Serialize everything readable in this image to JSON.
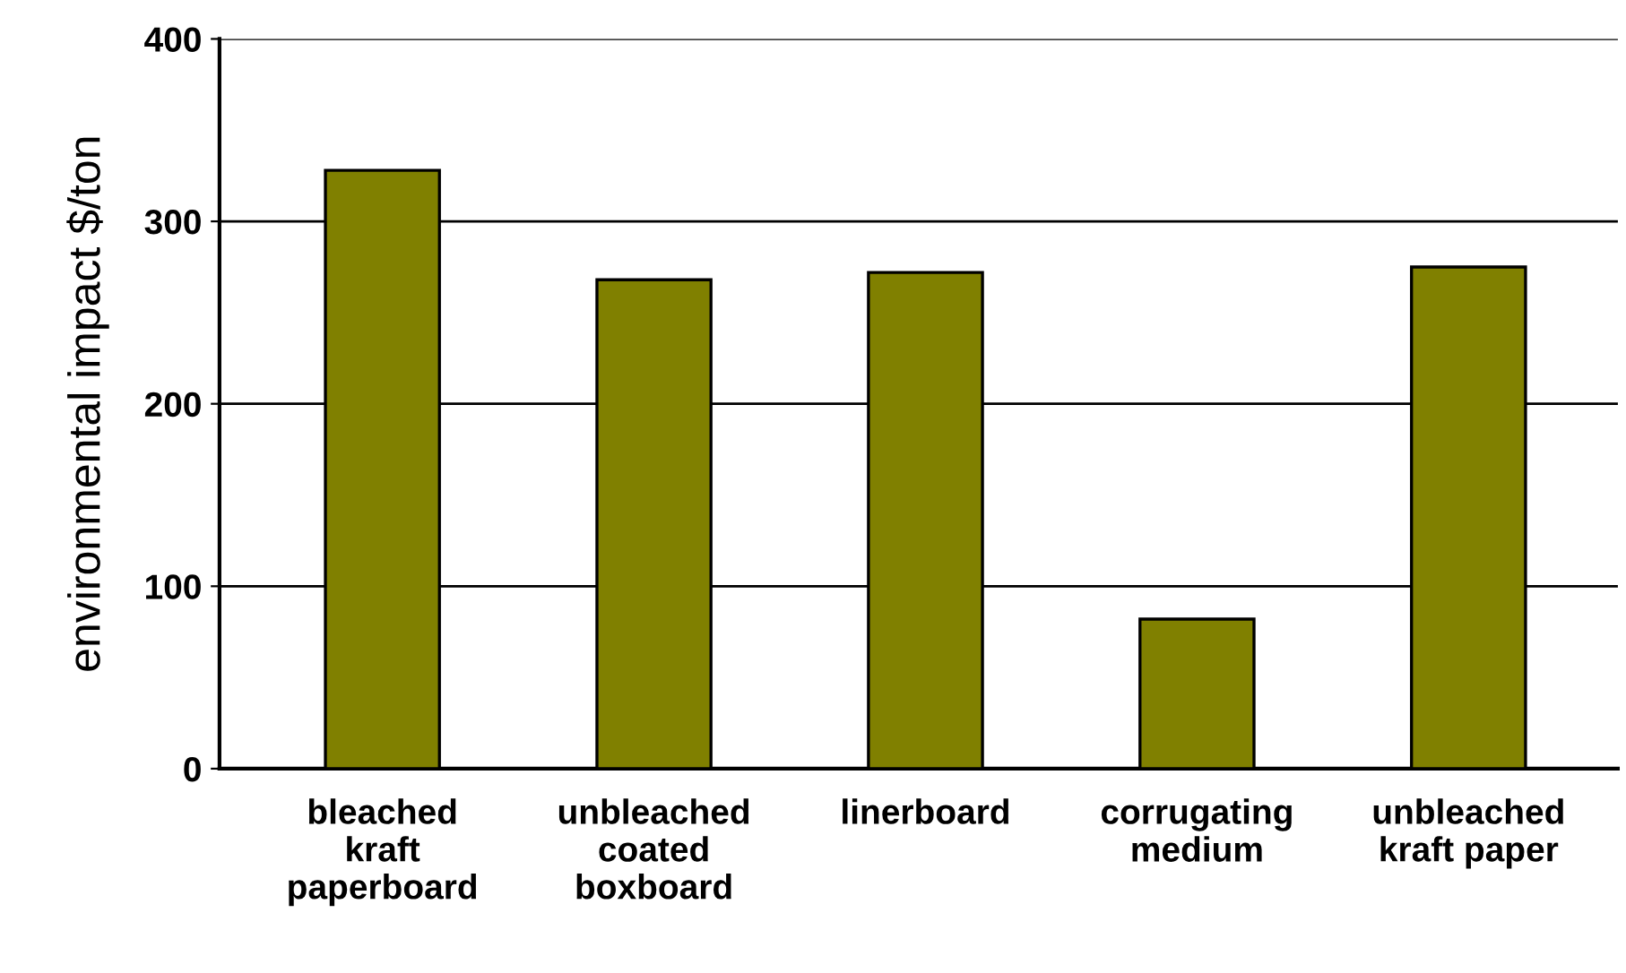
{
  "chart_data": {
    "type": "bar",
    "ylabel": "environmental impact $/ton",
    "categories": [
      "bleached\nkraft\npaperboard",
      "unbleached\ncoated\nboxboard",
      "linerboard",
      "corrugating\nmedium",
      "unbleached\nkraft paper"
    ],
    "values": [
      328,
      268,
      272,
      82,
      275
    ],
    "color": "#808000",
    "ylim": [
      0,
      400
    ],
    "yticks": [
      0,
      100,
      200,
      300,
      400
    ],
    "grid": "y"
  }
}
